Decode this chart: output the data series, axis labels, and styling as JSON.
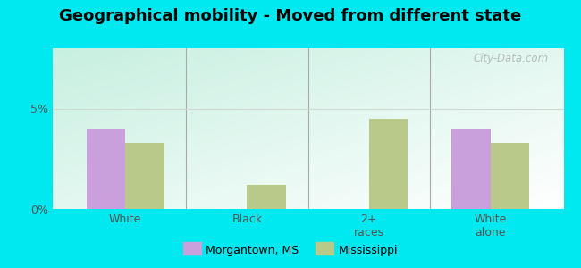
{
  "title": "Geographical mobility - Moved from different state",
  "categories": [
    "White",
    "Black",
    "2+\nraces",
    "White\nalone"
  ],
  "morgantown_values": [
    4.0,
    0.0,
    0.0,
    4.0
  ],
  "mississippi_values": [
    3.3,
    1.2,
    4.5,
    3.3
  ],
  "morgantown_color": "#c9a0dc",
  "mississippi_color": "#b8c98a",
  "background_outer": "#00e8f0",
  "background_inner_top_left": "#c8eee0",
  "background_inner_bottom_right": "#f0f8f0",
  "ylim": [
    0,
    8
  ],
  "yticks": [
    0,
    5
  ],
  "ytick_labels": [
    "0%",
    "5%"
  ],
  "grid_color": "#d0d8d0",
  "bar_width": 0.32,
  "legend_label1": "Morgantown, MS",
  "legend_label2": "Mississippi",
  "title_fontsize": 13,
  "tick_fontsize": 9,
  "legend_fontsize": 9,
  "watermark": "City-Data.com"
}
